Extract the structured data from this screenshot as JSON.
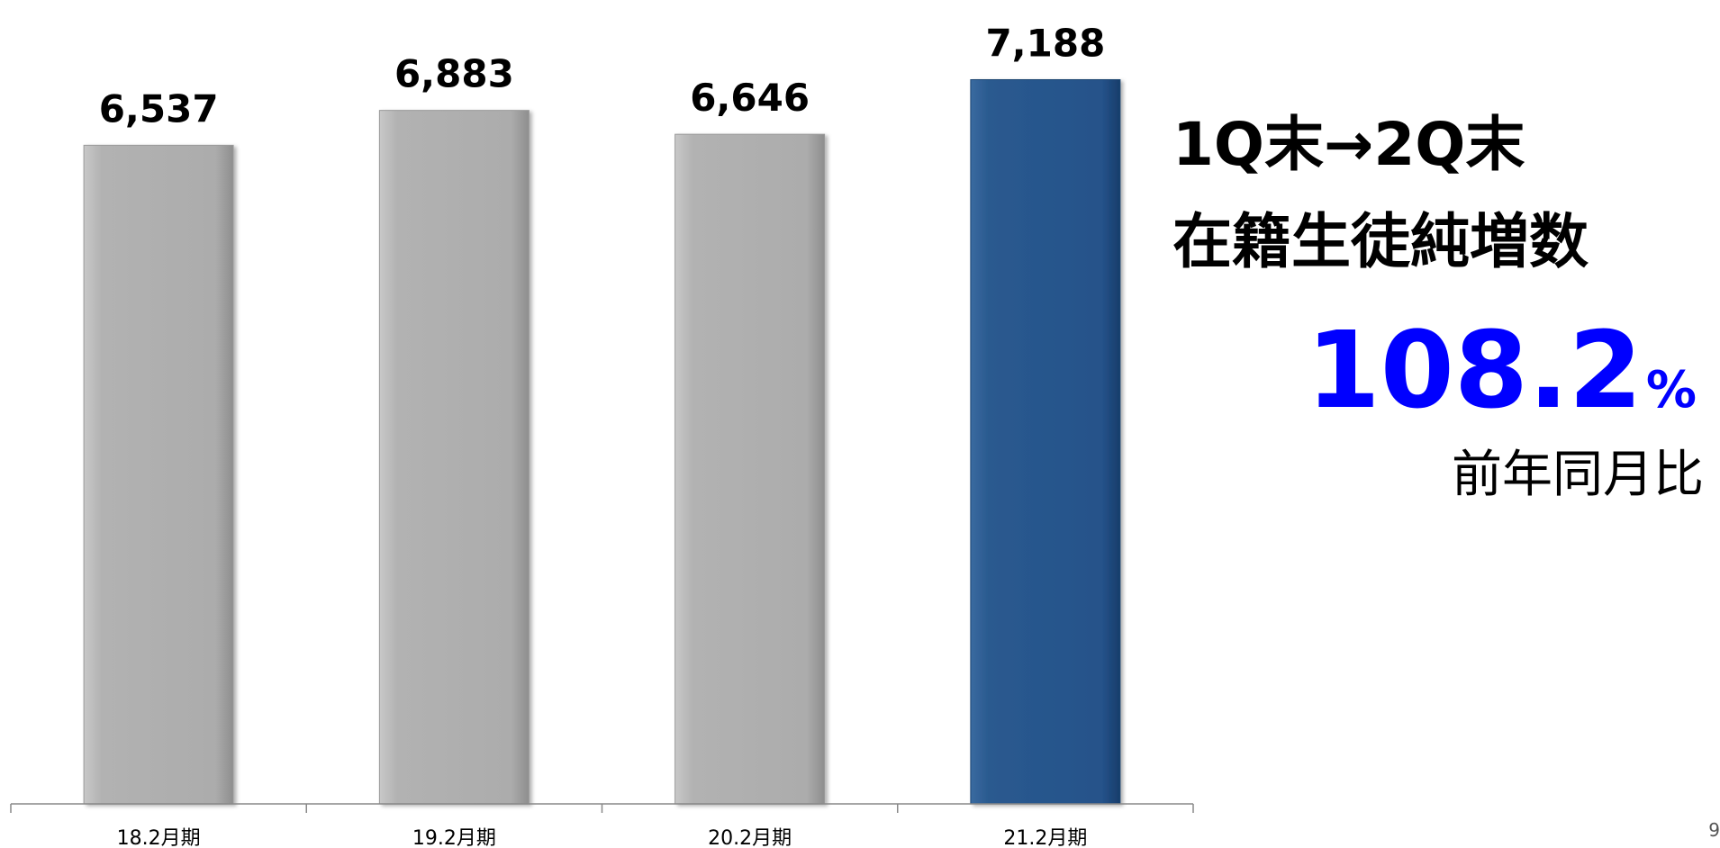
{
  "chart_data": {
    "type": "bar",
    "categories": [
      "18.2月期",
      "19.2月期",
      "20.2月期",
      "21.2月期"
    ],
    "values": [
      6537,
      6883,
      6646,
      7188
    ],
    "value_labels": [
      "6,537",
      "6,883",
      "6,646",
      "7,188"
    ],
    "title": "",
    "xlabel": "",
    "ylabel": "",
    "ylim": [
      0,
      7800
    ],
    "grid": false,
    "legend": "none",
    "highlight_index": 3,
    "colors": {
      "bar": "#b0b0b0",
      "highlight": "#27558a",
      "axis": "#888888"
    }
  },
  "side_panel": {
    "line1": "1Q末→2Q末",
    "line2": "在籍生徒純増数",
    "ratio_value": "108.2",
    "ratio_unit": "%",
    "ratio_caption": "前年同月比",
    "ratio_color": "#0000ff"
  },
  "page_number": "9"
}
